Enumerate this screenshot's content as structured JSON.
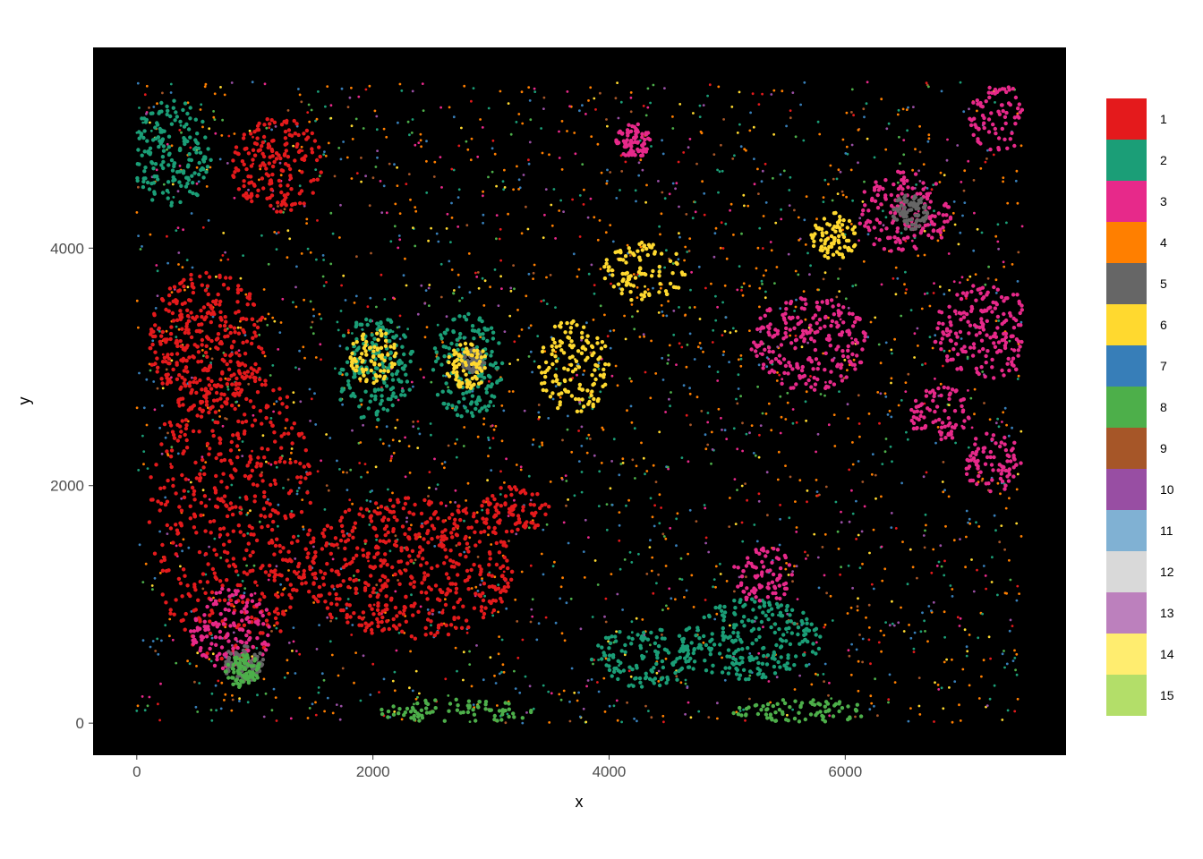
{
  "chart_data": {
    "type": "scatter",
    "title": "",
    "xlabel": "x",
    "ylabel": "y",
    "xlim": [
      -370,
      7870
    ],
    "ylim": [
      -270,
      5690
    ],
    "xticks": [
      0,
      2000,
      4000,
      6000
    ],
    "xtick_labels": [
      "0",
      "2000",
      "4000",
      "6000"
    ],
    "yticks": [
      0,
      2000,
      4000
    ],
    "ytick_labels": [
      "0",
      "2000",
      "4000"
    ],
    "panel_background": "#000000",
    "grid": false,
    "legend_position": "right",
    "data_extent": {
      "x": [
        0,
        7500
      ],
      "y": [
        0,
        5400
      ]
    },
    "clusters": [
      {
        "label": "1",
        "color": "#E41A1C"
      },
      {
        "label": "2",
        "color": "#1B9E77"
      },
      {
        "label": "3",
        "color": "#E7298A"
      },
      {
        "label": "4",
        "color": "#FF7F00"
      },
      {
        "label": "5",
        "color": "#666666"
      },
      {
        "label": "6",
        "color": "#FFD92F"
      },
      {
        "label": "7",
        "color": "#377EB8"
      },
      {
        "label": "8",
        "color": "#4DAF4A"
      },
      {
        "label": "9",
        "color": "#A65628"
      },
      {
        "label": "10",
        "color": "#984EA3"
      },
      {
        "label": "11",
        "color": "#80B1D3"
      },
      {
        "label": "12",
        "color": "#D9D9D9"
      },
      {
        "label": "13",
        "color": "#BC80BD"
      },
      {
        "label": "14",
        "color": "#FFED6F"
      },
      {
        "label": "15",
        "color": "#B3DE69"
      }
    ],
    "regions": [
      {
        "cluster": "1",
        "cx": 800,
        "cy": 1800,
        "rx": 700,
        "ry": 1300
      },
      {
        "cluster": "1",
        "cx": 2300,
        "cy": 1300,
        "rx": 900,
        "ry": 600
      },
      {
        "cluster": "1",
        "cx": 3200,
        "cy": 1800,
        "rx": 300,
        "ry": 200
      },
      {
        "cluster": "1",
        "cx": 1200,
        "cy": 4700,
        "rx": 400,
        "ry": 400
      },
      {
        "cluster": "1",
        "cx": 600,
        "cy": 3200,
        "rx": 500,
        "ry": 600
      },
      {
        "cluster": "2",
        "cx": 2000,
        "cy": 3000,
        "rx": 350,
        "ry": 450
      },
      {
        "cluster": "2",
        "cx": 2800,
        "cy": 3000,
        "rx": 300,
        "ry": 450
      },
      {
        "cluster": "2",
        "cx": 4300,
        "cy": 550,
        "rx": 450,
        "ry": 250
      },
      {
        "cluster": "2",
        "cx": 5200,
        "cy": 700,
        "rx": 600,
        "ry": 350
      },
      {
        "cluster": "2",
        "cx": 300,
        "cy": 4800,
        "rx": 350,
        "ry": 450
      },
      {
        "cluster": "3",
        "cx": 6500,
        "cy": 4300,
        "rx": 400,
        "ry": 350
      },
      {
        "cluster": "3",
        "cx": 7200,
        "cy": 3300,
        "rx": 450,
        "ry": 400
      },
      {
        "cluster": "3",
        "cx": 5700,
        "cy": 3200,
        "rx": 500,
        "ry": 400
      },
      {
        "cluster": "3",
        "cx": 5300,
        "cy": 1250,
        "rx": 250,
        "ry": 250
      },
      {
        "cluster": "3",
        "cx": 800,
        "cy": 800,
        "rx": 350,
        "ry": 350
      },
      {
        "cluster": "3",
        "cx": 7250,
        "cy": 2200,
        "rx": 250,
        "ry": 250
      },
      {
        "cluster": "3",
        "cx": 6800,
        "cy": 2600,
        "rx": 250,
        "ry": 250
      },
      {
        "cluster": "3",
        "cx": 7300,
        "cy": 5100,
        "rx": 250,
        "ry": 300
      },
      {
        "cluster": "3",
        "cx": 4200,
        "cy": 4900,
        "rx": 150,
        "ry": 150
      },
      {
        "cluster": "5",
        "cx": 6550,
        "cy": 4300,
        "rx": 150,
        "ry": 150
      },
      {
        "cluster": "5",
        "cx": 2850,
        "cy": 3050,
        "rx": 100,
        "ry": 100
      },
      {
        "cluster": "5",
        "cx": 900,
        "cy": 500,
        "rx": 180,
        "ry": 150
      },
      {
        "cluster": "6",
        "cx": 2000,
        "cy": 3100,
        "rx": 200,
        "ry": 250
      },
      {
        "cluster": "6",
        "cx": 2800,
        "cy": 3000,
        "rx": 180,
        "ry": 200
      },
      {
        "cluster": "6",
        "cx": 3700,
        "cy": 3000,
        "rx": 300,
        "ry": 400
      },
      {
        "cluster": "6",
        "cx": 5900,
        "cy": 4100,
        "rx": 200,
        "ry": 200
      },
      {
        "cluster": "6",
        "cx": 4300,
        "cy": 3800,
        "rx": 350,
        "ry": 250
      },
      {
        "cluster": "8",
        "cx": 900,
        "cy": 450,
        "rx": 150,
        "ry": 150
      },
      {
        "cluster": "8",
        "cx": 2700,
        "cy": 100,
        "rx": 700,
        "ry": 100
      },
      {
        "cluster": "8",
        "cx": 5600,
        "cy": 100,
        "rx": 600,
        "ry": 100
      }
    ]
  },
  "legend": {
    "entries": [
      "1",
      "2",
      "3",
      "4",
      "5",
      "6",
      "7",
      "8",
      "9",
      "10",
      "11",
      "12",
      "13",
      "14",
      "15"
    ]
  }
}
